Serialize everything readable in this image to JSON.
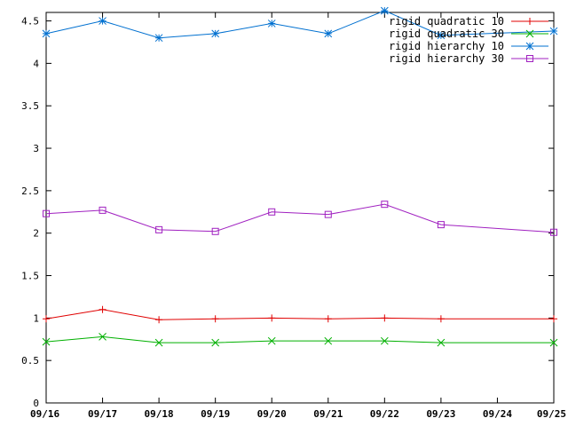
{
  "chart_data": {
    "type": "line",
    "title": "",
    "xlabel": "",
    "ylabel": "",
    "categories": [
      "09/16",
      "09/17",
      "09/18",
      "09/19",
      "09/20",
      "09/21",
      "09/22",
      "09/23",
      "09/24",
      "09/25"
    ],
    "ylim": [
      0,
      4.6
    ],
    "yticks": [
      "0",
      "0.5",
      "1",
      "1.5",
      "2",
      "2.5",
      "3",
      "3.5",
      "4",
      "4.5"
    ],
    "grid": false,
    "legend_position": "top-right",
    "series": [
      {
        "name": "rigid quadratic 10",
        "color": "#e00000",
        "marker": "plus",
        "points": [
          [
            0,
            0.99
          ],
          [
            1,
            1.1
          ],
          [
            2,
            0.98
          ],
          [
            3,
            0.99
          ],
          [
            4,
            1.0
          ],
          [
            5,
            0.99
          ],
          [
            6,
            1.0
          ],
          [
            7,
            0.99
          ],
          [
            9,
            0.99
          ]
        ]
      },
      {
        "name": "rigid quadratic 30",
        "color": "#00b000",
        "marker": "x",
        "points": [
          [
            0,
            0.72
          ],
          [
            1,
            0.78
          ],
          [
            2,
            0.71
          ],
          [
            3,
            0.71
          ],
          [
            4,
            0.73
          ],
          [
            5,
            0.73
          ],
          [
            6,
            0.73
          ],
          [
            7,
            0.71
          ],
          [
            9,
            0.71
          ]
        ]
      },
      {
        "name": "rigid hierarchy 10",
        "color": "#0070d0",
        "marker": "star",
        "points": [
          [
            0,
            4.35
          ],
          [
            1,
            4.5
          ],
          [
            2,
            4.3
          ],
          [
            3,
            4.35
          ],
          [
            4,
            4.47
          ],
          [
            5,
            4.35
          ],
          [
            6,
            4.62
          ],
          [
            7,
            4.33
          ],
          [
            9,
            4.38
          ]
        ]
      },
      {
        "name": "rigid hierarchy 30",
        "color": "#a020c0",
        "marker": "square",
        "points": [
          [
            0,
            2.23
          ],
          [
            1,
            2.27
          ],
          [
            2,
            2.04
          ],
          [
            3,
            2.02
          ],
          [
            4,
            2.25
          ],
          [
            5,
            2.22
          ],
          [
            6,
            2.34
          ],
          [
            7,
            2.1
          ],
          [
            9,
            2.01
          ]
        ]
      }
    ]
  }
}
